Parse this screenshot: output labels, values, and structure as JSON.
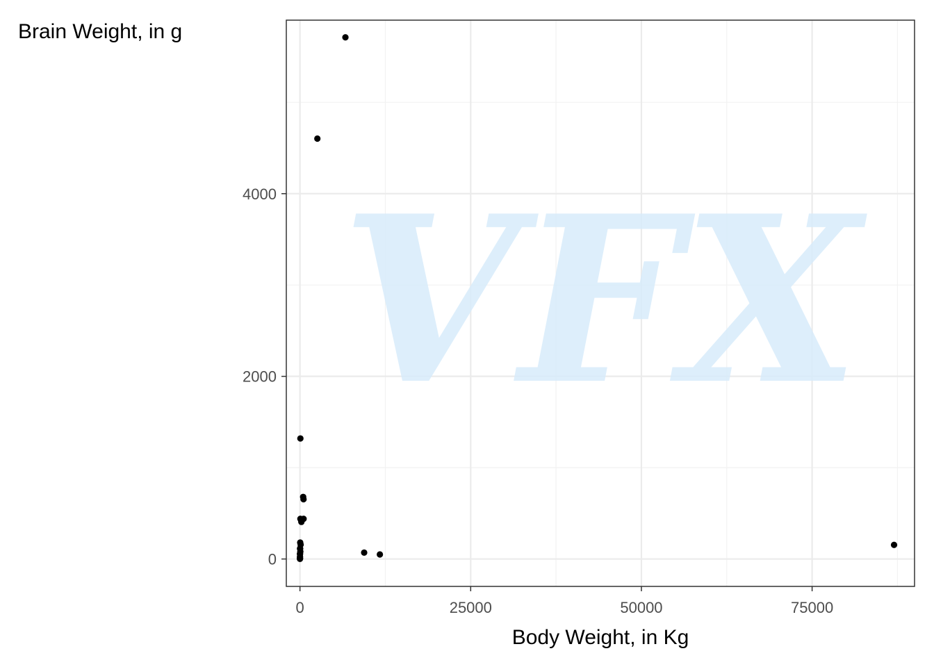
{
  "chart_data": {
    "type": "scatter",
    "xlabel": "Body Weight, in Kg",
    "ylabel": "Brain Weight, in g",
    "xlim": [
      -2000,
      90000
    ],
    "ylim": [
      -300,
      5900
    ],
    "x_ticks": [
      0,
      25000,
      50000,
      75000
    ],
    "x_tick_labels": [
      "0",
      "25000",
      "50000",
      "75000"
    ],
    "y_ticks": [
      0,
      2000,
      4000
    ],
    "y_tick_labels": [
      "0",
      "2000",
      "4000"
    ],
    "grid": true,
    "legend": "none",
    "point_color": "#000000",
    "watermark": "VFX",
    "points": [
      {
        "x": 6654,
        "y": 5712
      },
      {
        "x": 2547,
        "y": 4603
      },
      {
        "x": 62,
        "y": 1320
      },
      {
        "x": 521,
        "y": 655
      },
      {
        "x": 465,
        "y": 680
      },
      {
        "x": 187,
        "y": 419
      },
      {
        "x": 207,
        "y": 406
      },
      {
        "x": 529,
        "y": 440
      },
      {
        "x": 62,
        "y": 440
      },
      {
        "x": 35,
        "y": 180
      },
      {
        "x": 100,
        "y": 157
      },
      {
        "x": 27.66,
        "y": 115
      },
      {
        "x": 10,
        "y": 115
      },
      {
        "x": 52.16,
        "y": 81
      },
      {
        "x": 4.19,
        "y": 58
      },
      {
        "x": 3.3,
        "y": 25.6
      },
      {
        "x": 1.04,
        "y": 5.5
      },
      {
        "x": 0.12,
        "y": 1
      },
      {
        "x": 2.5,
        "y": 12.1
      },
      {
        "x": 6.8,
        "y": 56
      },
      {
        "x": 9400,
        "y": 70
      },
      {
        "x": 11700,
        "y": 50
      },
      {
        "x": 87000,
        "y": 154.5
      }
    ]
  }
}
